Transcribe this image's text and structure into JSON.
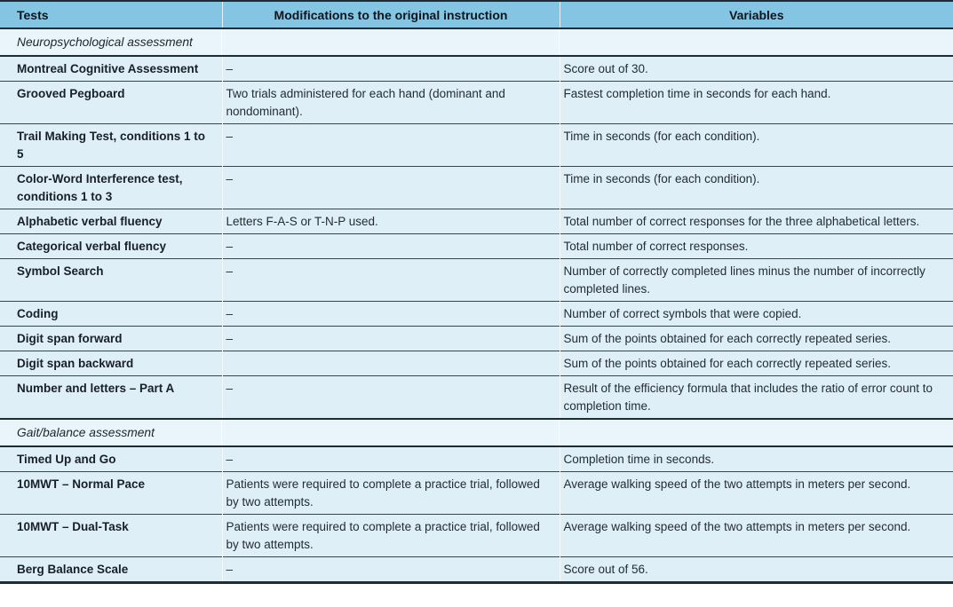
{
  "table": {
    "columns": [
      {
        "label": "Tests"
      },
      {
        "label": "Modifications to the original instruction"
      },
      {
        "label": "Variables"
      }
    ],
    "sections": [
      {
        "title": "Neuropsychological assessment",
        "rows": [
          {
            "test": "Montreal Cognitive Assessment",
            "modification": "–",
            "variable": "Score out of 30."
          },
          {
            "test": "Grooved Pegboard",
            "modification": "Two trials administered for each hand (dominant and nondominant).",
            "variable": "Fastest completion time in seconds for each hand."
          },
          {
            "test": "Trail Making Test, conditions 1 to 5",
            "modification": "–",
            "variable": "Time in seconds (for each condition)."
          },
          {
            "test": "Color-Word Interference test, conditions 1 to 3",
            "modification": "–",
            "variable": "Time in seconds (for each condition)."
          },
          {
            "test": "Alphabetic verbal fluency",
            "modification": "Letters F-A-S or T-N-P used.",
            "variable": "Total number of correct responses for the three alphabetical letters."
          },
          {
            "test": "Categorical verbal fluency",
            "modification": "–",
            "variable": "Total number of correct responses."
          },
          {
            "test": "Symbol Search",
            "modification": "–",
            "variable": "Number of correctly completed lines minus the number of incorrectly completed lines."
          },
          {
            "test": "Coding",
            "modification": "–",
            "variable": "Number of correct symbols that were copied."
          },
          {
            "test": "Digit span forward",
            "modification": "–",
            "variable": "Sum of the points obtained for each correctly repeated series."
          },
          {
            "test": "Digit span backward",
            "modification": "",
            "variable": "Sum of the points obtained for each correctly repeated series."
          },
          {
            "test": "Number and letters – Part A",
            "modification": "–",
            "variable": "Result of the efficiency formula that includes the ratio of error count to completion time."
          }
        ]
      },
      {
        "title": "Gait/balance assessment",
        "rows": [
          {
            "test": "Timed Up and Go",
            "modification": "–",
            "variable": "Completion time in seconds."
          },
          {
            "test": "10MWT – Normal Pace",
            "modification": "Patients were required to complete a practice trial, followed by two attempts.",
            "variable": "Average walking speed of the two attempts in meters per second."
          },
          {
            "test": "10MWT – Dual-Task",
            "modification": "Patients were required to complete a practice trial, followed by two attempts.",
            "variable": "Average walking speed of the two attempts in meters per second."
          },
          {
            "test": "Berg Balance Scale",
            "modification": "–",
            "variable": "Score out of 56."
          }
        ]
      }
    ],
    "colors": {
      "header_bg": "#83c5e2",
      "row_bg": "#dfeff8",
      "section_row_bg": "#e9f5fa",
      "heavy_rule": "#1f2a33",
      "row_rule": "#3a4550",
      "header_text": "#0e141b",
      "body_text": "#242c36"
    }
  }
}
